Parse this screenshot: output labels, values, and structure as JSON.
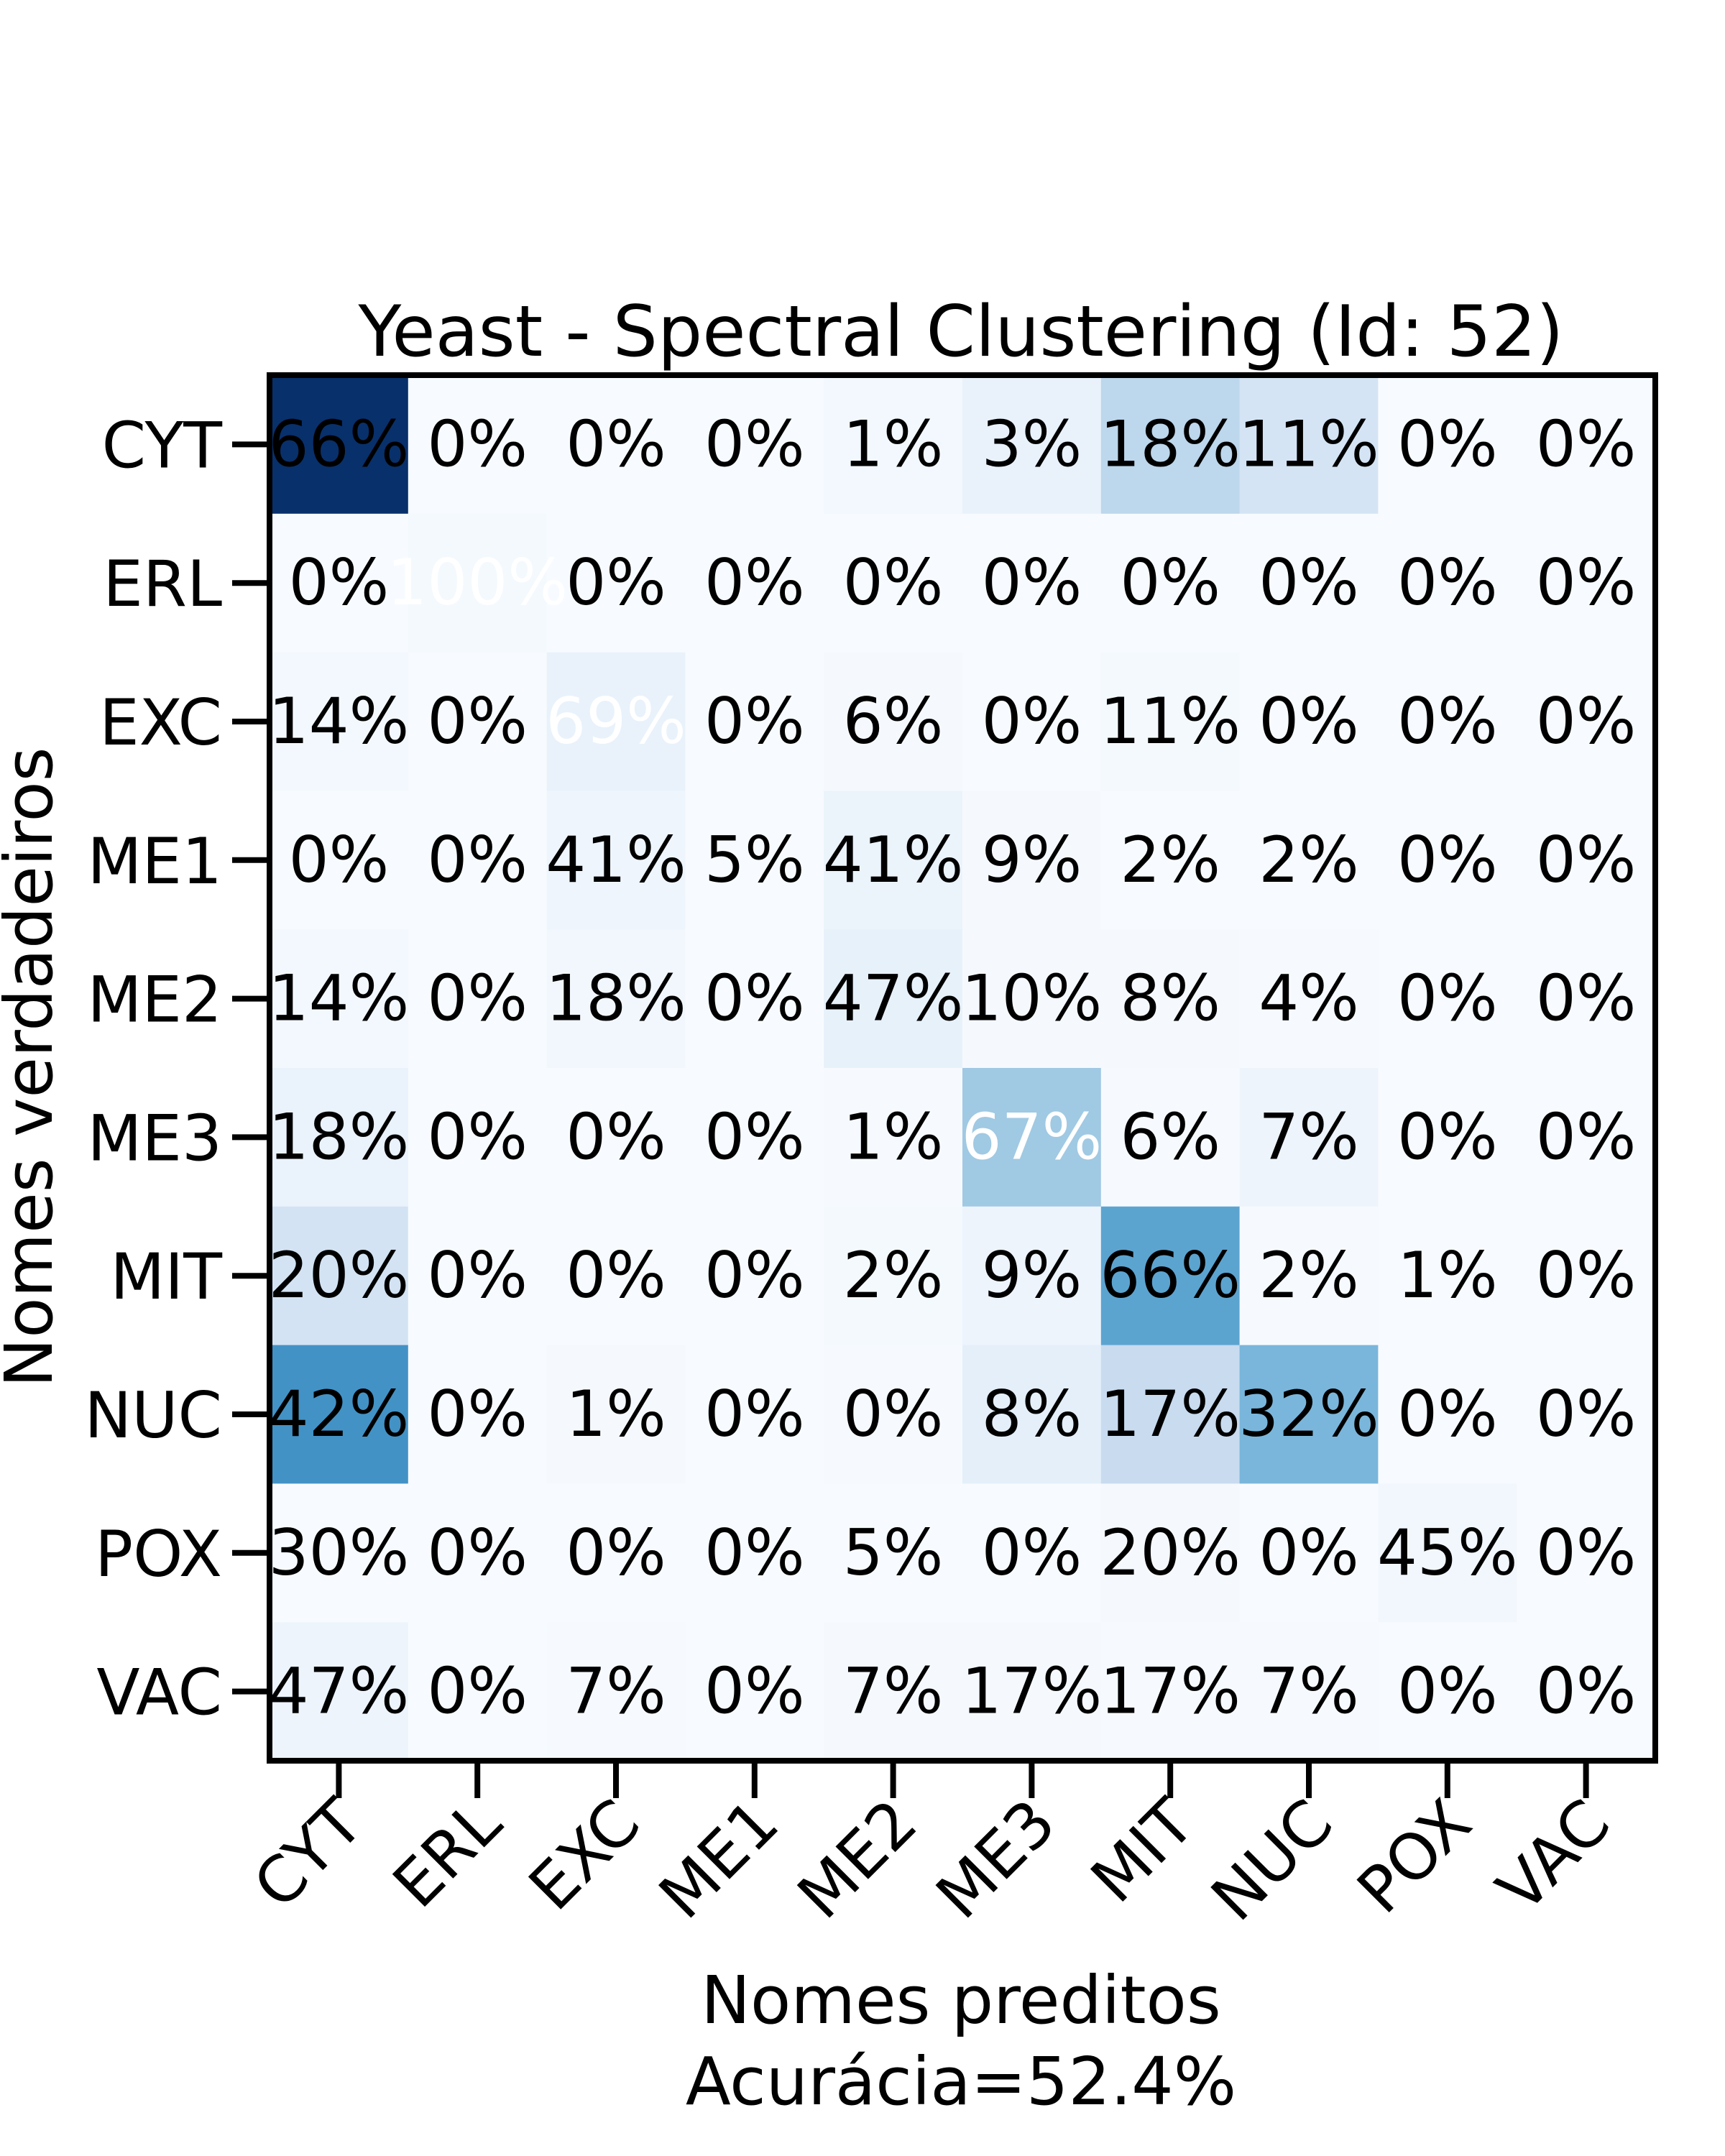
{
  "chart_data": {
    "type": "heatmap",
    "title": "Yeast - Spectral Clustering (Id: 52)",
    "xlabel": "Nomes preditos",
    "subtitle": "Acurácia=52.4%",
    "ylabel": "Nomes verdadeiros",
    "x_categories": [
      "CYT",
      "ERL",
      "EXC",
      "ME1",
      "ME2",
      "ME3",
      "MIT",
      "NUC",
      "POX",
      "VAC"
    ],
    "y_categories": [
      "CYT",
      "ERL",
      "EXC",
      "ME1",
      "ME2",
      "ME3",
      "MIT",
      "NUC",
      "POX",
      "VAC"
    ],
    "colormap": "Blues",
    "values": [
      [
        66,
        0,
        0,
        0,
        1,
        3,
        18,
        11,
        0,
        0
      ],
      [
        0,
        100,
        0,
        0,
        0,
        0,
        0,
        0,
        0,
        0
      ],
      [
        14,
        0,
        69,
        0,
        6,
        0,
        11,
        0,
        0,
        0
      ],
      [
        0,
        0,
        41,
        5,
        41,
        9,
        2,
        2,
        0,
        0
      ],
      [
        14,
        0,
        18,
        0,
        47,
        10,
        8,
        4,
        0,
        0
      ],
      [
        18,
        0,
        0,
        0,
        1,
        67,
        6,
        7,
        0,
        0
      ],
      [
        20,
        0,
        0,
        0,
        2,
        9,
        66,
        2,
        1,
        0
      ],
      [
        42,
        0,
        1,
        0,
        0,
        8,
        17,
        32,
        0,
        0
      ],
      [
        30,
        0,
        0,
        0,
        5,
        0,
        20,
        0,
        45,
        0
      ],
      [
        47,
        0,
        7,
        0,
        7,
        17,
        17,
        7,
        0,
        0
      ]
    ],
    "cell_labels": [
      [
        "66%",
        "0%",
        "0%",
        "0%",
        "1%",
        "3%",
        "18%",
        "11%",
        "0%",
        "0%"
      ],
      [
        "0%",
        "100%",
        "0%",
        "0%",
        "0%",
        "0%",
        "0%",
        "0%",
        "0%",
        "0%"
      ],
      [
        "14%",
        "0%",
        "69%",
        "0%",
        "6%",
        "0%",
        "11%",
        "0%",
        "0%",
        "0%"
      ],
      [
        "0%",
        "0%",
        "41%",
        "5%",
        "41%",
        "9%",
        "2%",
        "2%",
        "0%",
        "0%"
      ],
      [
        "14%",
        "0%",
        "18%",
        "0%",
        "47%",
        "10%",
        "8%",
        "4%",
        "0%",
        "0%"
      ],
      [
        "18%",
        "0%",
        "0%",
        "0%",
        "1%",
        "67%",
        "6%",
        "7%",
        "0%",
        "0%"
      ],
      [
        "20%",
        "0%",
        "0%",
        "0%",
        "2%",
        "9%",
        "66%",
        "2%",
        "1%",
        "0%"
      ],
      [
        "42%",
        "0%",
        "1%",
        "0%",
        "0%",
        "8%",
        "17%",
        "32%",
        "0%",
        "0%"
      ],
      [
        "30%",
        "0%",
        "0%",
        "0%",
        "5%",
        "0%",
        "20%",
        "0%",
        "45%",
        "0%"
      ],
      [
        "47%",
        "0%",
        "7%",
        "0%",
        "7%",
        "17%",
        "17%",
        "7%",
        "0%",
        "0%"
      ]
    ],
    "cell_colors": [
      [
        "#08306b",
        "#f7fbff",
        "#f7fbff",
        "#f7fbff",
        "#f2f8fd",
        "#e9f2fb",
        "#bdd7ec",
        "#d4e4f4",
        "#f7fbff",
        "#f7fbff"
      ],
      [
        "#f7fbff",
        "#f4f9fe",
        "#f7fbff",
        "#f7fbff",
        "#f7fbff",
        "#f7fbff",
        "#f7fbff",
        "#f7fbff",
        "#f7fbff",
        "#f7fbff"
      ],
      [
        "#f3f8fe",
        "#f7fbff",
        "#e9f2fb",
        "#f7fbff",
        "#f5f9fe",
        "#f7fbff",
        "#f4f9fe",
        "#f7fbff",
        "#f7fbff",
        "#f7fbff"
      ],
      [
        "#f7fbff",
        "#f7fbff",
        "#eef5fc",
        "#f7fbff",
        "#ebf3fb",
        "#f5f9fe",
        "#f7fbff",
        "#f7fbff",
        "#f7fbff",
        "#f7fbff"
      ],
      [
        "#f3f8fe",
        "#f7fbff",
        "#f2f7fd",
        "#f7fbff",
        "#e7f1fa",
        "#f5f9fe",
        "#f5f9fe",
        "#f6faff",
        "#f7fbff",
        "#f7fbff"
      ],
      [
        "#eaf2fb",
        "#f7fbff",
        "#f7fbff",
        "#f7fbff",
        "#f6faff",
        "#a0c9e3",
        "#f6faff",
        "#edf4fc",
        "#f7fbff",
        "#f7fbff"
      ],
      [
        "#d3e3f3",
        "#f7fbff",
        "#f7fbff",
        "#f7fbff",
        "#f4f9fe",
        "#edf4fc",
        "#5ca4d0",
        "#f6faff",
        "#f7fbff",
        "#f7fbff"
      ],
      [
        "#4292c6",
        "#f7fbff",
        "#f5f9fe",
        "#f7fbff",
        "#f6faff",
        "#e4eff9",
        "#c8dbef",
        "#7ab6db",
        "#f7fbff",
        "#f7fbff"
      ],
      [
        "#f7fbff",
        "#f7fbff",
        "#f7fbff",
        "#f7fbff",
        "#f7fbff",
        "#f7fbff",
        "#f5f9fe",
        "#f7fbff",
        "#f2f7fd",
        "#f7fbff"
      ],
      [
        "#edf4fc",
        "#f7fbff",
        "#f6faff",
        "#f7fbff",
        "#f5f9fe",
        "#f5f9fe",
        "#f6faff",
        "#f6faff",
        "#f7fbff",
        "#f7fbff"
      ]
    ],
    "label_colors": [
      [
        "#000000",
        "#000000",
        "#000000",
        "#000000",
        "#000000",
        "#000000",
        "#000000",
        "#000000",
        "#000000",
        "#000000"
      ],
      [
        "#000000",
        "#ffffff",
        "#000000",
        "#000000",
        "#000000",
        "#000000",
        "#000000",
        "#000000",
        "#000000",
        "#000000"
      ],
      [
        "#000000",
        "#000000",
        "#ffffff",
        "#000000",
        "#000000",
        "#000000",
        "#000000",
        "#000000",
        "#000000",
        "#000000"
      ],
      [
        "#000000",
        "#000000",
        "#000000",
        "#000000",
        "#000000",
        "#000000",
        "#000000",
        "#000000",
        "#000000",
        "#000000"
      ],
      [
        "#000000",
        "#000000",
        "#000000",
        "#000000",
        "#000000",
        "#000000",
        "#000000",
        "#000000",
        "#000000",
        "#000000"
      ],
      [
        "#000000",
        "#000000",
        "#000000",
        "#000000",
        "#000000",
        "#ffffff",
        "#000000",
        "#000000",
        "#000000",
        "#000000"
      ],
      [
        "#000000",
        "#000000",
        "#000000",
        "#000000",
        "#000000",
        "#000000",
        "#000000",
        "#000000",
        "#000000",
        "#000000"
      ],
      [
        "#000000",
        "#000000",
        "#000000",
        "#000000",
        "#000000",
        "#000000",
        "#000000",
        "#000000",
        "#000000",
        "#000000"
      ],
      [
        "#000000",
        "#000000",
        "#000000",
        "#000000",
        "#000000",
        "#000000",
        "#000000",
        "#000000",
        "#000000",
        "#000000"
      ],
      [
        "#000000",
        "#000000",
        "#000000",
        "#000000",
        "#000000",
        "#000000",
        "#000000",
        "#000000",
        "#000000",
        "#000000"
      ]
    ]
  }
}
